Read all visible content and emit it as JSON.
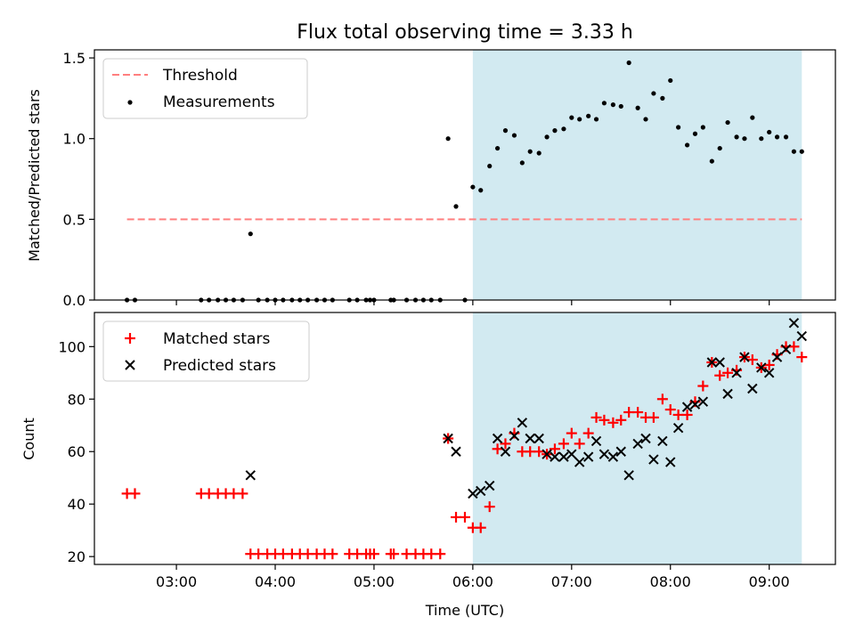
{
  "chart_data": [
    {
      "type": "scatter",
      "title": "Flux total observing time = 3.33 h",
      "xlabel": "",
      "ylabel": "Matched/Predicted stars",
      "xlim": [
        2.17,
        9.67
      ],
      "ylim": [
        0,
        1.55
      ],
      "yticks": [
        0,
        0.5,
        1.0,
        1.5
      ],
      "ytick_labels": [
        "0.0",
        "0.5",
        "1.0",
        "1.5"
      ],
      "grid": false,
      "legend": "top-left",
      "highlight_span": [
        6.0,
        9.33
      ],
      "highlight_color": "#add8e6",
      "threshold": {
        "name": "Threshold",
        "value": 0.5,
        "x": [
          2.5,
          9.33
        ],
        "color": "#ff7f7f",
        "style": "dashed"
      },
      "series": [
        {
          "name": "Measurements",
          "marker": "dot",
          "color": "#000000",
          "x": [
            2.5,
            2.58,
            3.25,
            3.33,
            3.42,
            3.5,
            3.58,
            3.67,
            3.75,
            3.83,
            3.92,
            4.0,
            4.08,
            4.17,
            4.25,
            4.33,
            4.42,
            4.5,
            4.58,
            4.75,
            4.83,
            4.92,
            4.96,
            5.0,
            5.17,
            5.2,
            5.33,
            5.42,
            5.5,
            5.58,
            5.67,
            5.75,
            5.83,
            5.92,
            6.0,
            6.08,
            6.17,
            6.25,
            6.33,
            6.42,
            6.5,
            6.58,
            6.67,
            6.75,
            6.83,
            6.92,
            7.0,
            7.08,
            7.17,
            7.25,
            7.33,
            7.42,
            7.5,
            7.58,
            7.67,
            7.75,
            7.83,
            7.92,
            8.0,
            8.08,
            8.17,
            8.25,
            8.33,
            8.42,
            8.5,
            8.58,
            8.67,
            8.75,
            8.83,
            8.92,
            9.0,
            9.08,
            9.17,
            9.25,
            9.33
          ],
          "y": [
            0,
            0,
            0,
            0,
            0,
            0,
            0,
            0,
            0.41,
            0,
            0,
            0,
            0,
            0,
            0,
            0,
            0,
            0,
            0,
            0,
            0,
            0,
            0,
            0,
            0,
            0,
            0,
            0,
            0,
            0,
            0,
            1.0,
            0.58,
            0,
            0.7,
            0.68,
            0.83,
            0.94,
            1.05,
            1.02,
            0.85,
            0.92,
            0.91,
            1.01,
            1.05,
            1.06,
            1.13,
            1.12,
            1.14,
            1.12,
            1.22,
            1.21,
            1.2,
            1.47,
            1.19,
            1.12,
            1.28,
            1.25,
            1.36,
            1.07,
            0.96,
            1.03,
            1.07,
            0.86,
            0.94,
            1.1,
            1.01,
            1.0,
            1.13,
            1.0,
            1.04,
            1.01,
            1.01,
            0.92,
            0.92
          ]
        }
      ]
    },
    {
      "type": "scatter",
      "title": "",
      "xlabel": "Time (UTC)",
      "ylabel": "Count",
      "xlim": [
        2.17,
        9.67
      ],
      "ylim": [
        17,
        113
      ],
      "xticks": [
        3,
        4,
        5,
        6,
        7,
        8,
        9
      ],
      "xtick_labels": [
        "03:00",
        "04:00",
        "05:00",
        "06:00",
        "07:00",
        "08:00",
        "09:00"
      ],
      "yticks": [
        20,
        40,
        60,
        80,
        100
      ],
      "ytick_labels": [
        "20",
        "40",
        "60",
        "80",
        "100"
      ],
      "grid": false,
      "legend": "top-left",
      "highlight_span": [
        6.0,
        9.33
      ],
      "highlight_color": "#add8e6",
      "series": [
        {
          "name": "Matched stars",
          "marker": "plus",
          "color": "#ff0000",
          "x": [
            2.5,
            2.58,
            3.25,
            3.33,
            3.42,
            3.5,
            3.58,
            3.67,
            3.75,
            3.83,
            3.92,
            4.0,
            4.08,
            4.17,
            4.25,
            4.33,
            4.42,
            4.5,
            4.58,
            4.75,
            4.83,
            4.92,
            4.96,
            5.0,
            5.17,
            5.2,
            5.33,
            5.42,
            5.5,
            5.58,
            5.67,
            5.75,
            5.83,
            5.92,
            6.0,
            6.08,
            6.17,
            6.25,
            6.33,
            6.42,
            6.5,
            6.58,
            6.67,
            6.75,
            6.83,
            6.92,
            7.0,
            7.08,
            7.17,
            7.25,
            7.33,
            7.42,
            7.5,
            7.58,
            7.67,
            7.75,
            7.83,
            7.92,
            8.0,
            8.08,
            8.17,
            8.25,
            8.33,
            8.42,
            8.5,
            8.58,
            8.67,
            8.75,
            8.83,
            8.92,
            9.0,
            9.08,
            9.17,
            9.25,
            9.33
          ],
          "y": [
            44,
            44,
            44,
            44,
            44,
            44,
            44,
            44,
            21,
            21,
            21,
            21,
            21,
            21,
            21,
            21,
            21,
            21,
            21,
            21,
            21,
            21,
            21,
            21,
            21,
            21,
            21,
            21,
            21,
            21,
            21,
            65,
            35,
            35,
            31,
            31,
            39,
            61,
            63,
            67,
            60,
            60,
            60,
            59,
            61,
            63,
            67,
            63,
            67,
            73,
            72,
            71,
            72,
            75,
            75,
            73,
            73,
            80,
            76,
            74,
            74,
            79,
            85,
            94,
            89,
            90,
            91,
            96,
            95,
            92,
            93,
            97,
            100,
            100,
            96
          ]
        },
        {
          "name": "Predicted stars",
          "marker": "x",
          "color": "#000000",
          "x": [
            3.75,
            5.75,
            5.83,
            6.0,
            6.08,
            6.17,
            6.25,
            6.33,
            6.42,
            6.5,
            6.58,
            6.67,
            6.75,
            6.83,
            6.92,
            7.0,
            7.08,
            7.17,
            7.25,
            7.33,
            7.42,
            7.5,
            7.58,
            7.67,
            7.75,
            7.83,
            7.92,
            8.0,
            8.08,
            8.17,
            8.25,
            8.33,
            8.42,
            8.5,
            8.58,
            8.67,
            8.75,
            8.83,
            8.92,
            9.0,
            9.08,
            9.17,
            9.25,
            9.33
          ],
          "y": [
            51,
            65,
            60,
            44,
            45,
            47,
            65,
            60,
            66,
            71,
            65,
            65,
            59,
            58,
            58,
            59,
            56,
            58,
            64,
            59,
            58,
            60,
            51,
            63,
            65,
            57,
            64,
            56,
            69,
            77,
            78,
            79,
            94,
            94,
            82,
            90,
            96,
            84,
            92,
            90,
            96,
            99,
            109,
            104
          ]
        }
      ]
    }
  ]
}
